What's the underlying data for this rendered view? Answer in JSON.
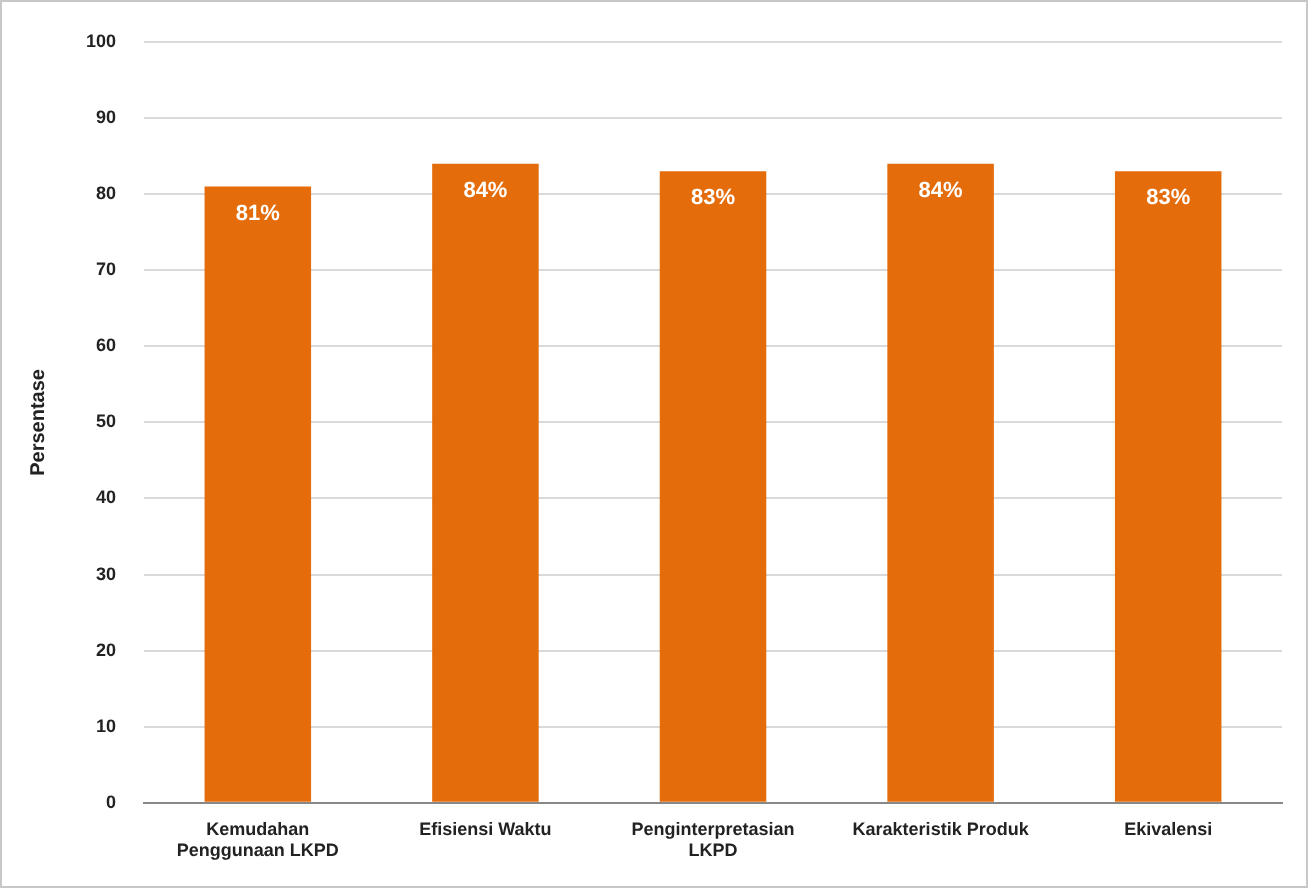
{
  "chart_data": {
    "type": "bar",
    "ylabel": "Persentase",
    "categories": [
      "Kemudahan Penggunaan LKPD",
      "Efisiensi Waktu",
      "Penginterpretasian LKPD",
      "Karakteristik Produk",
      "Ekivalensi"
    ],
    "values": [
      81,
      84,
      83,
      84,
      83
    ],
    "value_labels": [
      "81%",
      "84%",
      "83%",
      "84%",
      "83%"
    ],
    "color": "#e46c0a",
    "ylim": [
      0,
      100
    ],
    "yticks": [
      0,
      10,
      20,
      30,
      40,
      50,
      60,
      70,
      80,
      90,
      100
    ],
    "grid": "y",
    "legend": false
  }
}
